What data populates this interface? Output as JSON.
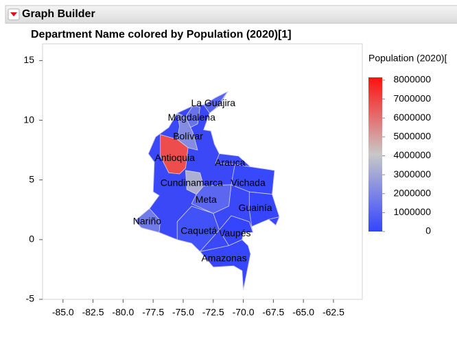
{
  "header": {
    "title": "Graph Builder"
  },
  "chart_data": {
    "type": "choropleth",
    "title": "Department Name colored by Population (2020)[1]",
    "xlim": [
      -86.7,
      -60.1
    ],
    "ylim": [
      -5,
      16.4
    ],
    "xticks": [
      {
        "value": -85,
        "label": "-85.0"
      },
      {
        "value": -82.5,
        "label": "-82.5"
      },
      {
        "value": -80,
        "label": "-80.0"
      },
      {
        "value": -77.5,
        "label": "-77.5"
      },
      {
        "value": -75,
        "label": "-75.0"
      },
      {
        "value": -72.5,
        "label": "-72.5"
      },
      {
        "value": -70,
        "label": "-70.0"
      },
      {
        "value": -67.5,
        "label": "-67.5"
      },
      {
        "value": -65,
        "label": "-65.0"
      },
      {
        "value": -62.5,
        "label": "-62.5"
      }
    ],
    "yticks": [
      -5,
      0,
      5,
      10,
      15
    ],
    "colorscale": {
      "title": "Population (2020)[",
      "lim": [
        0,
        8000000
      ],
      "ticks": [
        0,
        1000000,
        2000000,
        3000000,
        4000000,
        5000000,
        6000000,
        7000000,
        8000000
      ],
      "colors": [
        "#3344ff",
        "#c8c8c8",
        "#ff1010"
      ]
    },
    "regions": [
      {
        "name": "La Guajira",
        "lon": -72.5,
        "lat": 11.4,
        "value": 965718
      },
      {
        "name": "Magdalena",
        "lon": -74.3,
        "lat": 10.2,
        "value": 1427026
      },
      {
        "name": "Bolívar",
        "lon": -74.6,
        "lat": 8.6,
        "value": 2180976
      },
      {
        "name": "Antioquia",
        "lon": -75.7,
        "lat": 6.8,
        "value": 6677930
      },
      {
        "name": "Arauca",
        "lon": -71.1,
        "lat": 6.4,
        "value": 294206
      },
      {
        "name": "Cundinamarca",
        "lon": -74.3,
        "lat": 4.7,
        "value": 3242999
      },
      {
        "name": "Vichada",
        "lon": -69.6,
        "lat": 4.7,
        "value": 112958
      },
      {
        "name": "Meta",
        "lon": -73.1,
        "lat": 3.3,
        "value": 1063454
      },
      {
        "name": "Guainía",
        "lon": -69.0,
        "lat": 2.6,
        "value": 50636
      },
      {
        "name": "Nariño",
        "lon": -78.0,
        "lat": 1.5,
        "value": 1627589
      },
      {
        "name": "Caquetá",
        "lon": -73.7,
        "lat": 0.7,
        "value": 410521
      },
      {
        "name": "Vaupés",
        "lon": -70.7,
        "lat": 0.5,
        "value": 44712
      },
      {
        "name": "Amazonas",
        "lon": -71.6,
        "lat": -1.6,
        "value": 80464
      }
    ]
  }
}
